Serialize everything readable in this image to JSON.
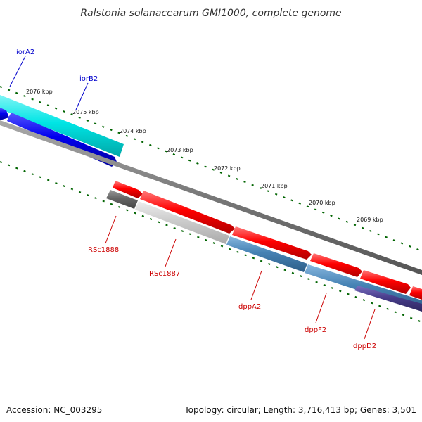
{
  "title": "Ralstonia solanacearum GMI1000, complete genome",
  "footer": {
    "accession": "Accession: NC_003295",
    "summary": "Topology: circular; Length: 3,716,413 bp; Genes: 3,501"
  },
  "ruler": {
    "labels": [
      "2076 kbp",
      "2075 kbp",
      "2074 kbp",
      "2073 kbp",
      "2072 kbp",
      "2071 kbp",
      "2070 kbp",
      "2069 kbp"
    ]
  },
  "genes": [
    {
      "name": "iorA2",
      "strand": "forward",
      "color": "#00e5e5"
    },
    {
      "name": "iorB2",
      "strand": "forward",
      "color": "#0000ee"
    },
    {
      "name": "RSc1888",
      "strand": "reverse",
      "color": "#666666"
    },
    {
      "name": "RSc1887",
      "strand": "reverse",
      "color": "#cccccc"
    },
    {
      "name": "dppA2",
      "strand": "reverse",
      "color": "#4682b4"
    },
    {
      "name": "dppF2",
      "strand": "reverse",
      "color": "#4682b4"
    },
    {
      "name": "dppD2",
      "strand": "reverse",
      "color": "#483d8b"
    }
  ],
  "colors": {
    "forward_label": "#0000cc",
    "reverse_label": "#cc0000",
    "cds_red": "#ff0000",
    "backbone": "#777777",
    "tick": "#006400"
  }
}
